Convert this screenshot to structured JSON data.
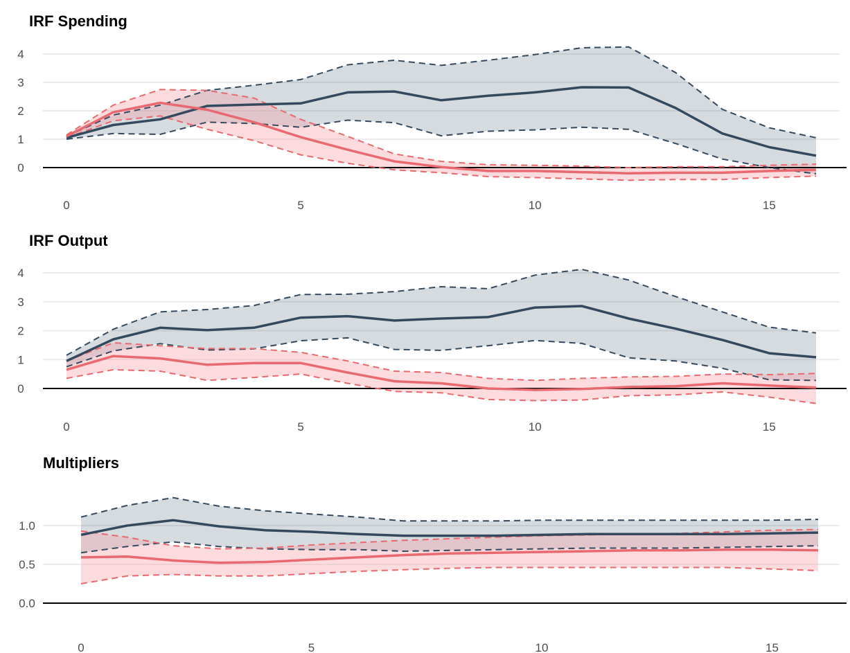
{
  "colors": {
    "blue": "#34495e",
    "red": "#e8696f",
    "blue_fill": "#34495e",
    "red_fill": "#f4a6a9"
  },
  "chart_data": [
    {
      "type": "line",
      "title": "IRF Spending",
      "x": [
        0,
        1,
        2,
        3,
        4,
        5,
        6,
        7,
        8,
        9,
        10,
        11,
        12,
        13,
        14,
        15,
        16
      ],
      "xticks": [
        "0",
        "5",
        "10",
        "15"
      ],
      "yticks": [
        "0",
        "1",
        "2",
        "3",
        "4"
      ],
      "ylim": [
        -0.6,
        4.3
      ],
      "zero_line": true,
      "grid": true,
      "series": [
        {
          "color": "#34495e",
          "mean": [
            1.05,
            1.5,
            1.7,
            2.17,
            2.22,
            2.26,
            2.65,
            2.68,
            2.37,
            2.53,
            2.65,
            2.83,
            2.82,
            2.1,
            1.2,
            0.72,
            0.42
          ],
          "lower": [
            1.0,
            1.2,
            1.17,
            1.6,
            1.55,
            1.42,
            1.67,
            1.58,
            1.12,
            1.28,
            1.33,
            1.42,
            1.35,
            0.85,
            0.3,
            0.0,
            -0.22
          ],
          "upper": [
            1.1,
            1.85,
            2.2,
            2.72,
            2.9,
            3.1,
            3.62,
            3.78,
            3.6,
            3.78,
            3.98,
            4.22,
            4.25,
            3.35,
            2.05,
            1.4,
            1.05
          ]
        },
        {
          "color": "#e8696f",
          "mean": [
            1.1,
            1.95,
            2.28,
            2.04,
            1.6,
            1.07,
            0.63,
            0.22,
            0.02,
            -0.12,
            -0.12,
            -0.16,
            -0.2,
            -0.18,
            -0.18,
            -0.12,
            -0.08
          ],
          "lower": [
            1.05,
            1.65,
            1.82,
            1.35,
            0.95,
            0.45,
            0.15,
            -0.08,
            -0.18,
            -0.32,
            -0.35,
            -0.4,
            -0.45,
            -0.42,
            -0.42,
            -0.35,
            -0.3
          ],
          "upper": [
            1.15,
            2.2,
            2.75,
            2.72,
            2.45,
            1.7,
            1.1,
            0.48,
            0.22,
            0.1,
            0.08,
            0.05,
            0.0,
            0.03,
            0.03,
            0.08,
            0.12
          ]
        }
      ]
    },
    {
      "type": "line",
      "title": "IRF Output",
      "x": [
        0,
        1,
        2,
        3,
        4,
        5,
        6,
        7,
        8,
        9,
        10,
        11,
        12,
        13,
        14,
        15,
        16
      ],
      "xticks": [
        "0",
        "5",
        "10",
        "15"
      ],
      "yticks": [
        "0",
        "1",
        "2",
        "3",
        "4"
      ],
      "ylim": [
        -0.6,
        4.3
      ],
      "zero_line": true,
      "grid": true,
      "series": [
        {
          "color": "#34495e",
          "mean": [
            0.95,
            1.7,
            2.1,
            2.02,
            2.1,
            2.45,
            2.5,
            2.35,
            2.42,
            2.47,
            2.8,
            2.85,
            2.42,
            2.07,
            1.68,
            1.22,
            1.08
          ],
          "lower": [
            0.75,
            1.3,
            1.55,
            1.33,
            1.37,
            1.65,
            1.75,
            1.35,
            1.32,
            1.48,
            1.66,
            1.56,
            1.06,
            0.95,
            0.7,
            0.3,
            0.28
          ],
          "upper": [
            1.15,
            2.05,
            2.65,
            2.73,
            2.87,
            3.25,
            3.26,
            3.35,
            3.52,
            3.45,
            3.92,
            4.12,
            3.75,
            3.18,
            2.65,
            2.12,
            1.92
          ]
        },
        {
          "color": "#e8696f",
          "mean": [
            0.65,
            1.12,
            1.04,
            0.82,
            0.88,
            0.88,
            0.55,
            0.25,
            0.18,
            0.0,
            -0.05,
            -0.02,
            0.05,
            0.08,
            0.18,
            0.1,
            0.03
          ],
          "lower": [
            0.35,
            0.65,
            0.6,
            0.28,
            0.38,
            0.5,
            0.18,
            -0.1,
            -0.15,
            -0.38,
            -0.42,
            -0.4,
            -0.25,
            -0.22,
            -0.12,
            -0.3,
            -0.52
          ],
          "upper": [
            0.95,
            1.58,
            1.48,
            1.38,
            1.38,
            1.25,
            0.95,
            0.6,
            0.55,
            0.35,
            0.28,
            0.35,
            0.4,
            0.42,
            0.5,
            0.48,
            0.52
          ]
        }
      ]
    },
    {
      "type": "line",
      "title": "Multipliers",
      "x": [
        0,
        1,
        2,
        3,
        4,
        5,
        6,
        7,
        8,
        9,
        10,
        11,
        12,
        13,
        14,
        15,
        16
      ],
      "xticks": [
        "0",
        "5",
        "10",
        "15"
      ],
      "yticks": [
        "0.0",
        "0.5",
        "1.0"
      ],
      "ylim": [
        -0.03,
        1.45
      ],
      "zero_line": true,
      "grid": true,
      "series": [
        {
          "color": "#34495e",
          "mean": [
            0.88,
            1.0,
            1.07,
            0.99,
            0.94,
            0.92,
            0.89,
            0.87,
            0.87,
            0.87,
            0.88,
            0.89,
            0.89,
            0.89,
            0.89,
            0.9,
            0.91
          ],
          "lower": [
            0.65,
            0.73,
            0.79,
            0.73,
            0.7,
            0.69,
            0.69,
            0.67,
            0.68,
            0.69,
            0.7,
            0.71,
            0.71,
            0.71,
            0.72,
            0.73,
            0.74
          ],
          "upper": [
            1.11,
            1.26,
            1.36,
            1.25,
            1.19,
            1.15,
            1.11,
            1.06,
            1.06,
            1.06,
            1.07,
            1.07,
            1.07,
            1.07,
            1.07,
            1.07,
            1.08
          ]
        },
        {
          "color": "#e8696f",
          "mean": [
            0.59,
            0.6,
            0.55,
            0.52,
            0.53,
            0.56,
            0.59,
            0.62,
            0.64,
            0.65,
            0.66,
            0.67,
            0.68,
            0.68,
            0.69,
            0.69,
            0.68
          ],
          "lower": [
            0.25,
            0.35,
            0.37,
            0.35,
            0.35,
            0.38,
            0.41,
            0.43,
            0.45,
            0.46,
            0.46,
            0.46,
            0.46,
            0.46,
            0.46,
            0.44,
            0.42
          ],
          "upper": [
            0.93,
            0.85,
            0.74,
            0.7,
            0.71,
            0.75,
            0.78,
            0.81,
            0.83,
            0.85,
            0.87,
            0.88,
            0.89,
            0.9,
            0.92,
            0.94,
            0.95
          ]
        }
      ]
    }
  ]
}
